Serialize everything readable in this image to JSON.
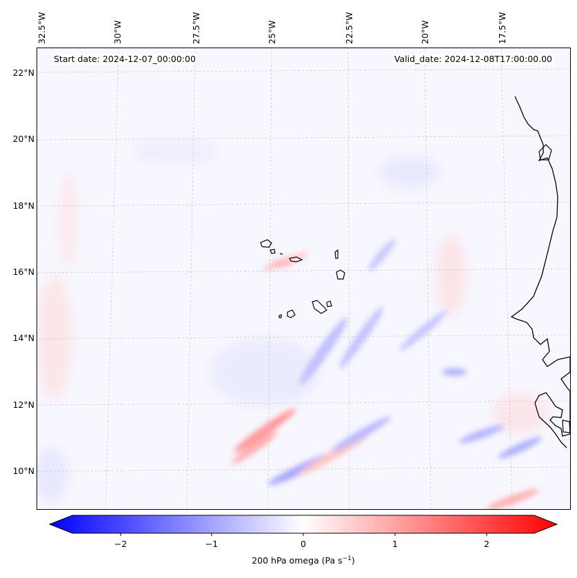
{
  "header": {
    "start_date": "Start date: 2024-12-07_00:00:00",
    "valid_date": "Valid_date: 2024-12-08T17:00:00.00"
  },
  "lon_labels": [
    "32.5°W",
    "30°W",
    "27.5°W",
    "25°W",
    "22.5°W",
    "20°W",
    "17.5°W"
  ],
  "lat_labels": [
    "22°N",
    "20°N",
    "18°N",
    "16°N",
    "14°N",
    "12°N",
    "10°N"
  ],
  "colorbar": {
    "ticks": [
      "−2",
      "−1",
      "0",
      "1",
      "2"
    ],
    "label_main": "200 hPa omega (Pa s",
    "label_sup": "−1",
    "label_end": ")",
    "min": -2.6,
    "max": 2.6,
    "colors": {
      "low": "#0000ff",
      "mid": "#ffffff",
      "high": "#ff0000"
    }
  },
  "map": {
    "background": "#f7f7ff",
    "coastline_color": "#000000",
    "gridline_color": "#bbbbbb"
  }
}
